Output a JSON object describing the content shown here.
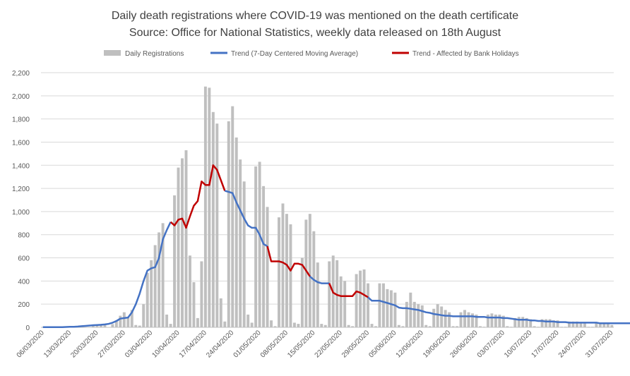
{
  "chart_data": {
    "type": "bar+line",
    "title": "Daily death registrations where COVID-19 was mentioned on the death certificate",
    "subtitle": "Source: Office for National Statistics, weekly data released on 18th August",
    "legend_position": "top",
    "legend": [
      {
        "name": "Daily Registrations",
        "kind": "bar",
        "color": "#bfbfbf"
      },
      {
        "name": "Trend (7-Day Centered Moving Average)",
        "kind": "line",
        "color": "#4472c4"
      },
      {
        "name": "Trend - Affected by Bank Holidays",
        "kind": "line",
        "color": "#c00000"
      }
    ],
    "ylim": [
      0,
      2200
    ],
    "yticks": [
      "0",
      "200",
      "400",
      "600",
      "800",
      "1,000",
      "1,200",
      "1,400",
      "1,600",
      "1,800",
      "2,000",
      "2,200"
    ],
    "ytick_values": [
      0,
      200,
      400,
      600,
      800,
      1000,
      1200,
      1400,
      1600,
      1800,
      2000,
      2200
    ],
    "grid": true,
    "start_date": "2020-03-06",
    "xtick_labels": [
      "06/03/2020",
      "13/03/2020",
      "20/03/2020",
      "27/03/2020",
      "03/04/2020",
      "10/04/2020",
      "17/04/2020",
      "24/04/2020",
      "01/05/2020",
      "08/05/2020",
      "15/05/2020",
      "22/05/2020",
      "29/05/2020",
      "05/06/2020",
      "12/06/2020",
      "19/06/2020",
      "26/06/2020",
      "03/07/2020",
      "10/07/2020",
      "17/07/2020",
      "24/07/2020",
      "31/07/2020"
    ],
    "daily_registrations": [
      1,
      0,
      2,
      1,
      0,
      0,
      0,
      3,
      3,
      5,
      8,
      0,
      0,
      15,
      25,
      20,
      30,
      0,
      28,
      60,
      100,
      130,
      90,
      150,
      20,
      15,
      200,
      470,
      580,
      710,
      820,
      900,
      110,
      30,
      1140,
      1380,
      1460,
      1530,
      620,
      390,
      80,
      570,
      2080,
      2070,
      1860,
      1760,
      250,
      50,
      1780,
      1910,
      1640,
      1450,
      1260,
      110,
      40,
      1390,
      1430,
      1220,
      1040,
      60,
      10,
      950,
      1070,
      980,
      890,
      40,
      30,
      600,
      930,
      980,
      830,
      560,
      30,
      20,
      570,
      620,
      580,
      440,
      400,
      20,
      10,
      460,
      490,
      500,
      380,
      30,
      10,
      380,
      380,
      330,
      320,
      300,
      20,
      10,
      220,
      300,
      220,
      200,
      190,
      20,
      10,
      160,
      200,
      180,
      150,
      130,
      10,
      10,
      130,
      150,
      130,
      120,
      110,
      10,
      5,
      110,
      120,
      110,
      110,
      100,
      10,
      5,
      80,
      90,
      90,
      80,
      70,
      10,
      5,
      70,
      70,
      70,
      60,
      60,
      5,
      5,
      50,
      50,
      50,
      40,
      40,
      5,
      5,
      40,
      40,
      40,
      30,
      20
    ],
    "trend_segments": [
      {
        "series": "Trend (7-Day Centered Moving Average)",
        "start_index": 0,
        "values": [
          1,
          1,
          1,
          1,
          2,
          2,
          3,
          4,
          5,
          7,
          10,
          12,
          15,
          18,
          20,
          22,
          25,
          30,
          40,
          55,
          75,
          80,
          85,
          130,
          200,
          290,
          400,
          490,
          510,
          520,
          600,
          760,
          840,
          910
        ]
      },
      {
        "series": "Trend - Affected by Bank Holidays",
        "start_index": 33,
        "values": [
          910,
          880,
          930,
          940,
          860,
          960,
          1050,
          1090,
          1260,
          1230,
          1230,
          1400,
          1360,
          1270,
          1180
        ]
      },
      {
        "series": "Trend (7-Day Centered Moving Average)",
        "start_index": 47,
        "values": [
          1180,
          1170,
          1160,
          1080,
          1010,
          940,
          880,
          860,
          860,
          800,
          720,
          700
        ]
      },
      {
        "series": "Trend - Affected by Bank Holidays",
        "start_index": 58,
        "values": [
          700,
          570,
          570,
          570,
          560,
          540,
          490,
          550,
          550,
          540,
          490,
          440
        ]
      },
      {
        "series": "Trend (7-Day Centered Moving Average)",
        "start_index": 69,
        "values": [
          440,
          410,
          390,
          380,
          380,
          380
        ]
      },
      {
        "series": "Trend - Affected by Bank Holidays",
        "start_index": 74,
        "values": [
          380,
          300,
          280,
          270,
          270,
          270,
          270,
          310,
          300,
          280,
          260
        ]
      },
      {
        "series": "Trend (7-Day Centered Moving Average)",
        "start_index": 84,
        "values": [
          260,
          230,
          230,
          230,
          220,
          210,
          200,
          190,
          170,
          165,
          165,
          160,
          155,
          150,
          140,
          130,
          125,
          115,
          110,
          105,
          100,
          100,
          95,
          95,
          95,
          95,
          95,
          95,
          90,
          90,
          90,
          85,
          85,
          85,
          85,
          80,
          80,
          75,
          70,
          65,
          65,
          65,
          60,
          60,
          55,
          55,
          50,
          50,
          50,
          45,
          45,
          45,
          40,
          40,
          40,
          40,
          40,
          40,
          40,
          40,
          35,
          35,
          35,
          35,
          35,
          35,
          35,
          35,
          35,
          30,
          25
        ]
      }
    ]
  }
}
